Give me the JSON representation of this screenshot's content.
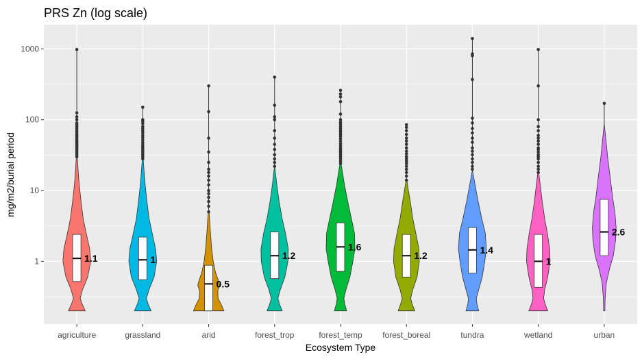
{
  "chart_data": {
    "type": "violin",
    "title": "PRS Zn (log scale)",
    "xlabel": "Ecosystem Type",
    "ylabel": "mg/m2/burial period",
    "yscale": "log10",
    "ylim": [
      0.13,
      2200
    ],
    "yticks": [
      1,
      10,
      100,
      1000
    ],
    "yticklabels": [
      "1",
      "10",
      "100",
      "1000"
    ],
    "categories": [
      "agriculture",
      "grassland",
      "arid",
      "forest_trop",
      "forest_temp",
      "forest_boreal",
      "tundra",
      "wetland",
      "urban"
    ],
    "series": [
      {
        "name": "agriculture",
        "color": "#F8766D",
        "median": 1.1,
        "label": "1.1",
        "q1": 0.52,
        "q3": 2.4,
        "min": 0.2,
        "max": 980,
        "profile": [
          [
            0.2,
            0.55
          ],
          [
            0.25,
            0.35
          ],
          [
            0.3,
            0.22
          ],
          [
            0.4,
            0.38
          ],
          [
            0.6,
            0.72
          ],
          [
            1.0,
            0.92
          ],
          [
            1.5,
            0.85
          ],
          [
            2.5,
            0.62
          ],
          [
            4,
            0.42
          ],
          [
            7,
            0.28
          ],
          [
            12,
            0.16
          ],
          [
            20,
            0.08
          ],
          [
            30,
            0.03
          ]
        ],
        "outliers": [
          30,
          32,
          34,
          36,
          38,
          40,
          42,
          44,
          46,
          48,
          50,
          52,
          55,
          58,
          60,
          63,
          67,
          70,
          75,
          80,
          85,
          90,
          100,
          110,
          125,
          980
        ]
      },
      {
        "name": "grassland",
        "color": "#00B9E3",
        "median": 1.05,
        "label": "1",
        "q1": 0.55,
        "q3": 2.2,
        "min": 0.2,
        "max": 150,
        "profile": [
          [
            0.2,
            0.55
          ],
          [
            0.25,
            0.35
          ],
          [
            0.3,
            0.24
          ],
          [
            0.4,
            0.42
          ],
          [
            0.6,
            0.75
          ],
          [
            1.0,
            0.92
          ],
          [
            1.5,
            0.85
          ],
          [
            2.5,
            0.62
          ],
          [
            4,
            0.42
          ],
          [
            7,
            0.28
          ],
          [
            12,
            0.16
          ],
          [
            20,
            0.08
          ],
          [
            28,
            0.03
          ]
        ],
        "outliers": [
          28,
          30,
          32,
          34,
          36,
          38,
          40,
          42,
          45,
          48,
          52,
          56,
          60,
          65,
          70,
          75,
          80,
          88,
          95,
          100,
          150
        ]
      },
      {
        "name": "arid",
        "color": "#D39200",
        "median": 0.48,
        "label": "0.5",
        "q1": 0.2,
        "q3": 0.88,
        "min": 0.2,
        "max": 300,
        "profile": [
          [
            0.2,
            1.0
          ],
          [
            0.24,
            0.85
          ],
          [
            0.3,
            0.62
          ],
          [
            0.38,
            0.6
          ],
          [
            0.46,
            0.72
          ],
          [
            0.55,
            0.62
          ],
          [
            0.7,
            0.45
          ],
          [
            1.0,
            0.3
          ],
          [
            1.5,
            0.2
          ],
          [
            2.5,
            0.12
          ],
          [
            4,
            0.06
          ],
          [
            5,
            0.02
          ]
        ],
        "outliers": [
          5,
          6,
          7,
          8,
          9,
          10,
          12,
          14,
          16,
          18,
          20,
          25,
          35,
          55,
          130,
          300
        ]
      },
      {
        "name": "forest_trop",
        "color": "#00C19F",
        "median": 1.2,
        "label": "1.2",
        "q1": 0.57,
        "q3": 2.6,
        "min": 0.2,
        "max": 400,
        "profile": [
          [
            0.2,
            0.5
          ],
          [
            0.25,
            0.32
          ],
          [
            0.3,
            0.22
          ],
          [
            0.4,
            0.38
          ],
          [
            0.6,
            0.68
          ],
          [
            1.0,
            0.88
          ],
          [
            1.5,
            0.9
          ],
          [
            2.5,
            0.72
          ],
          [
            4,
            0.5
          ],
          [
            7,
            0.3
          ],
          [
            12,
            0.15
          ],
          [
            20,
            0.03
          ]
        ],
        "outliers": [
          22,
          25,
          28,
          32,
          38,
          45,
          55,
          70,
          100,
          110,
          160,
          400
        ]
      },
      {
        "name": "forest_temp",
        "color": "#00BA38",
        "median": 1.6,
        "label": "1.6",
        "q1": 0.72,
        "q3": 3.5,
        "min": 0.2,
        "max": 260,
        "profile": [
          [
            0.2,
            0.4
          ],
          [
            0.25,
            0.28
          ],
          [
            0.3,
            0.22
          ],
          [
            0.4,
            0.36
          ],
          [
            0.6,
            0.62
          ],
          [
            1.0,
            0.82
          ],
          [
            1.5,
            0.95
          ],
          [
            2.5,
            0.92
          ],
          [
            4,
            0.72
          ],
          [
            7,
            0.48
          ],
          [
            12,
            0.26
          ],
          [
            20,
            0.1
          ],
          [
            24,
            0.03
          ]
        ],
        "outliers": [
          24,
          26,
          28,
          30,
          32,
          34,
          36,
          38,
          40,
          43,
          46,
          50,
          54,
          58,
          62,
          66,
          70,
          75,
          80,
          86,
          92,
          100,
          120,
          180,
          210,
          230,
          260
        ]
      },
      {
        "name": "forest_boreal",
        "color": "#93AA00",
        "median": 1.2,
        "label": "1.2",
        "q1": 0.6,
        "q3": 2.4,
        "min": 0.2,
        "max": 85,
        "profile": [
          [
            0.2,
            0.55
          ],
          [
            0.25,
            0.38
          ],
          [
            0.3,
            0.28
          ],
          [
            0.4,
            0.42
          ],
          [
            0.6,
            0.7
          ],
          [
            1.0,
            0.85
          ],
          [
            1.5,
            0.82
          ],
          [
            2.5,
            0.62
          ],
          [
            4,
            0.42
          ],
          [
            7,
            0.25
          ],
          [
            11,
            0.1
          ],
          [
            14,
            0.03
          ]
        ],
        "outliers": [
          14,
          16,
          18,
          20,
          22,
          24,
          26,
          28,
          30,
          33,
          36,
          40,
          45,
          50,
          55,
          62,
          70,
          78,
          85
        ]
      },
      {
        "name": "tundra",
        "color": "#619CFF",
        "median": 1.45,
        "label": "1.4",
        "q1": 0.68,
        "q3": 3.0,
        "min": 0.2,
        "max": 1400,
        "profile": [
          [
            0.2,
            0.42
          ],
          [
            0.25,
            0.3
          ],
          [
            0.3,
            0.26
          ],
          [
            0.4,
            0.42
          ],
          [
            0.6,
            0.65
          ],
          [
            1.0,
            0.82
          ],
          [
            1.5,
            0.92
          ],
          [
            2.5,
            0.85
          ],
          [
            4,
            0.62
          ],
          [
            7,
            0.38
          ],
          [
            12,
            0.18
          ],
          [
            18,
            0.03
          ]
        ],
        "outliers": [
          20,
          22,
          25,
          28,
          32,
          36,
          40,
          48,
          55,
          65,
          75,
          90,
          105,
          370,
          800,
          850,
          1400
        ]
      },
      {
        "name": "wetland",
        "color": "#FF61C3",
        "median": 1.0,
        "label": "1",
        "q1": 0.43,
        "q3": 2.4,
        "min": 0.2,
        "max": 980,
        "profile": [
          [
            0.2,
            0.62
          ],
          [
            0.25,
            0.45
          ],
          [
            0.3,
            0.35
          ],
          [
            0.4,
            0.42
          ],
          [
            0.6,
            0.62
          ],
          [
            1.0,
            0.78
          ],
          [
            1.5,
            0.75
          ],
          [
            2.5,
            0.6
          ],
          [
            4,
            0.42
          ],
          [
            7,
            0.26
          ],
          [
            12,
            0.13
          ],
          [
            18,
            0.03
          ]
        ],
        "outliers": [
          18,
          20,
          22,
          25,
          28,
          30,
          32,
          35,
          38,
          40,
          45,
          50,
          55,
          60,
          70,
          80,
          100,
          300,
          980
        ]
      },
      {
        "name": "urban",
        "color": "#DB72FB",
        "median": 2.6,
        "label": "2.6",
        "q1": 1.2,
        "q3": 7.5,
        "min": 0.2,
        "max": 170,
        "profile": [
          [
            0.2,
            0.04
          ],
          [
            0.3,
            0.06
          ],
          [
            0.5,
            0.14
          ],
          [
            0.8,
            0.36
          ],
          [
            1.2,
            0.6
          ],
          [
            2.0,
            0.75
          ],
          [
            3.0,
            0.78
          ],
          [
            5.0,
            0.7
          ],
          [
            8.0,
            0.55
          ],
          [
            15,
            0.4
          ],
          [
            30,
            0.22
          ],
          [
            55,
            0.1
          ],
          [
            80,
            0.02
          ]
        ],
        "outliers": [
          170
        ]
      }
    ]
  }
}
